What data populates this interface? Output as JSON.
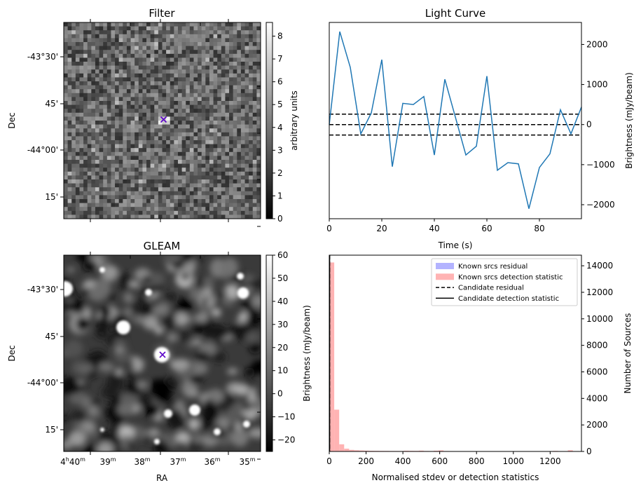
{
  "panels": {
    "filter": {
      "title": "Filter",
      "ylabel": "Dec",
      "ytick_labels": [
        "-43°30'",
        "45'",
        "-44°00'",
        "15'"
      ],
      "colorbar_label": "arbitrary units",
      "colorbar_ticks": [
        "0",
        "1",
        "2",
        "3",
        "4",
        "5",
        "6",
        "7",
        "8"
      ],
      "colorbar_range": [
        0,
        8.6
      ],
      "grid_size": 50,
      "marker": "x",
      "marker_color": "#5b00c8"
    },
    "gleam": {
      "title": "GLEAM",
      "ylabel": "Dec",
      "xlabel": "RA",
      "ytick_labels": [
        "-43°30'",
        "45'",
        "-44°00'",
        "15'"
      ],
      "xtick_labels": [
        {
          "h": "4",
          "hs": "h",
          "m": "40",
          "ms": "m"
        },
        {
          "h": "",
          "hs": "",
          "m": "39",
          "ms": "m"
        },
        {
          "h": "",
          "hs": "",
          "m": "38",
          "ms": "m"
        },
        {
          "h": "",
          "hs": "",
          "m": "37",
          "ms": "m"
        },
        {
          "h": "",
          "hs": "",
          "m": "36",
          "ms": "m"
        },
        {
          "h": "",
          "hs": "",
          "m": "35",
          "ms": "m"
        }
      ],
      "colorbar_label": "Brightness (mJy/beam)",
      "colorbar_ticks": [
        "−20",
        "−10",
        "0",
        "10",
        "20",
        "30",
        "40",
        "50",
        "60"
      ],
      "colorbar_range": [
        -25,
        60
      ],
      "marker": "x",
      "marker_color": "#5b00c8"
    }
  },
  "chart_data": [
    {
      "type": "line",
      "title": "Light Curve",
      "xlabel": "Time (s)",
      "ylabel": "Brightness (mJy/beam)",
      "xlim": [
        0,
        96
      ],
      "ylim": [
        -2350,
        2550
      ],
      "xticks": [
        0,
        20,
        40,
        60,
        80
      ],
      "yticks": [
        -2000,
        -1000,
        0,
        1000,
        2000
      ],
      "ytick_labels": [
        "−2000",
        "−1000",
        "0",
        "1000",
        "2000"
      ],
      "series": [
        {
          "color": "#1f77b4",
          "x": [
            0,
            4,
            8,
            12,
            16,
            20,
            24,
            28,
            32,
            36,
            40,
            44,
            48,
            52,
            56,
            60,
            64,
            68,
            72,
            76,
            80,
            84,
            88,
            92,
            96
          ],
          "values": [
            0,
            2320,
            1430,
            -230,
            290,
            1620,
            -1050,
            530,
            500,
            700,
            -760,
            1130,
            190,
            -760,
            -540,
            1210,
            -1140,
            -950,
            -980,
            -2100,
            -1070,
            -730,
            370,
            -230,
            440
          ]
        }
      ],
      "hlines": [
        {
          "y": 260,
          "style": "dashed"
        },
        {
          "y": 0,
          "style": "dashed"
        },
        {
          "y": -260,
          "style": "dashed"
        }
      ]
    },
    {
      "type": "bar",
      "xlabel": "Normalised stdev or detection statistics",
      "ylabel": "Number of Sources",
      "xlim": [
        0,
        1370
      ],
      "ylim": [
        0,
        14800
      ],
      "xticks": [
        0,
        200,
        400,
        600,
        800,
        1000,
        1200
      ],
      "yticks": [
        0,
        2000,
        4000,
        6000,
        8000,
        10000,
        12000,
        14000
      ],
      "legend_position": "top-right",
      "legend": [
        {
          "label": "Known srcs residual",
          "kind": "patch",
          "color": "#b3b3ff"
        },
        {
          "label": "Known srcs detection statistic",
          "kind": "patch",
          "color": "#ffb3b3"
        },
        {
          "label": "Candidate residual",
          "kind": "dashed-line",
          "color": "#000000"
        },
        {
          "label": "Candidate detection statistic",
          "kind": "solid-line",
          "color": "#000000"
        }
      ],
      "series": [
        {
          "name": "Known srcs detection statistic",
          "color": "#ffb3b3",
          "bin_width": 27,
          "bin_starts": [
            0,
            27,
            54,
            81,
            108,
            135,
            162,
            189,
            216,
            243,
            270,
            297,
            324,
            351,
            378,
            405,
            432,
            459,
            486,
            513,
            540,
            567,
            594,
            621,
            648,
            675,
            702,
            729,
            756,
            783,
            810,
            837,
            864,
            891,
            918,
            945,
            972,
            999,
            1026,
            1053,
            1080,
            1107,
            1134,
            1161,
            1188,
            1215,
            1242,
            1269,
            1296,
            1323
          ],
          "values": [
            14250,
            3150,
            540,
            210,
            120,
            90,
            75,
            60,
            50,
            45,
            40,
            38,
            35,
            33,
            30,
            55,
            45,
            40,
            60,
            35,
            30,
            55,
            80,
            30,
            28,
            25,
            22,
            20,
            18,
            15,
            15,
            14,
            13,
            12,
            11,
            10,
            10,
            9,
            8,
            8,
            7,
            7,
            6,
            6,
            5,
            40,
            5,
            4,
            90,
            4
          ]
        },
        {
          "name": "Known srcs residual",
          "color": "#b3b3ff",
          "bin_width": 27,
          "bin_starts": [],
          "values": []
        }
      ],
      "candidate_lines": [
        {
          "name": "Candidate residual",
          "x": 0,
          "style": "dashed"
        },
        {
          "name": "Candidate detection statistic",
          "x": 0,
          "style": "solid"
        }
      ]
    }
  ]
}
